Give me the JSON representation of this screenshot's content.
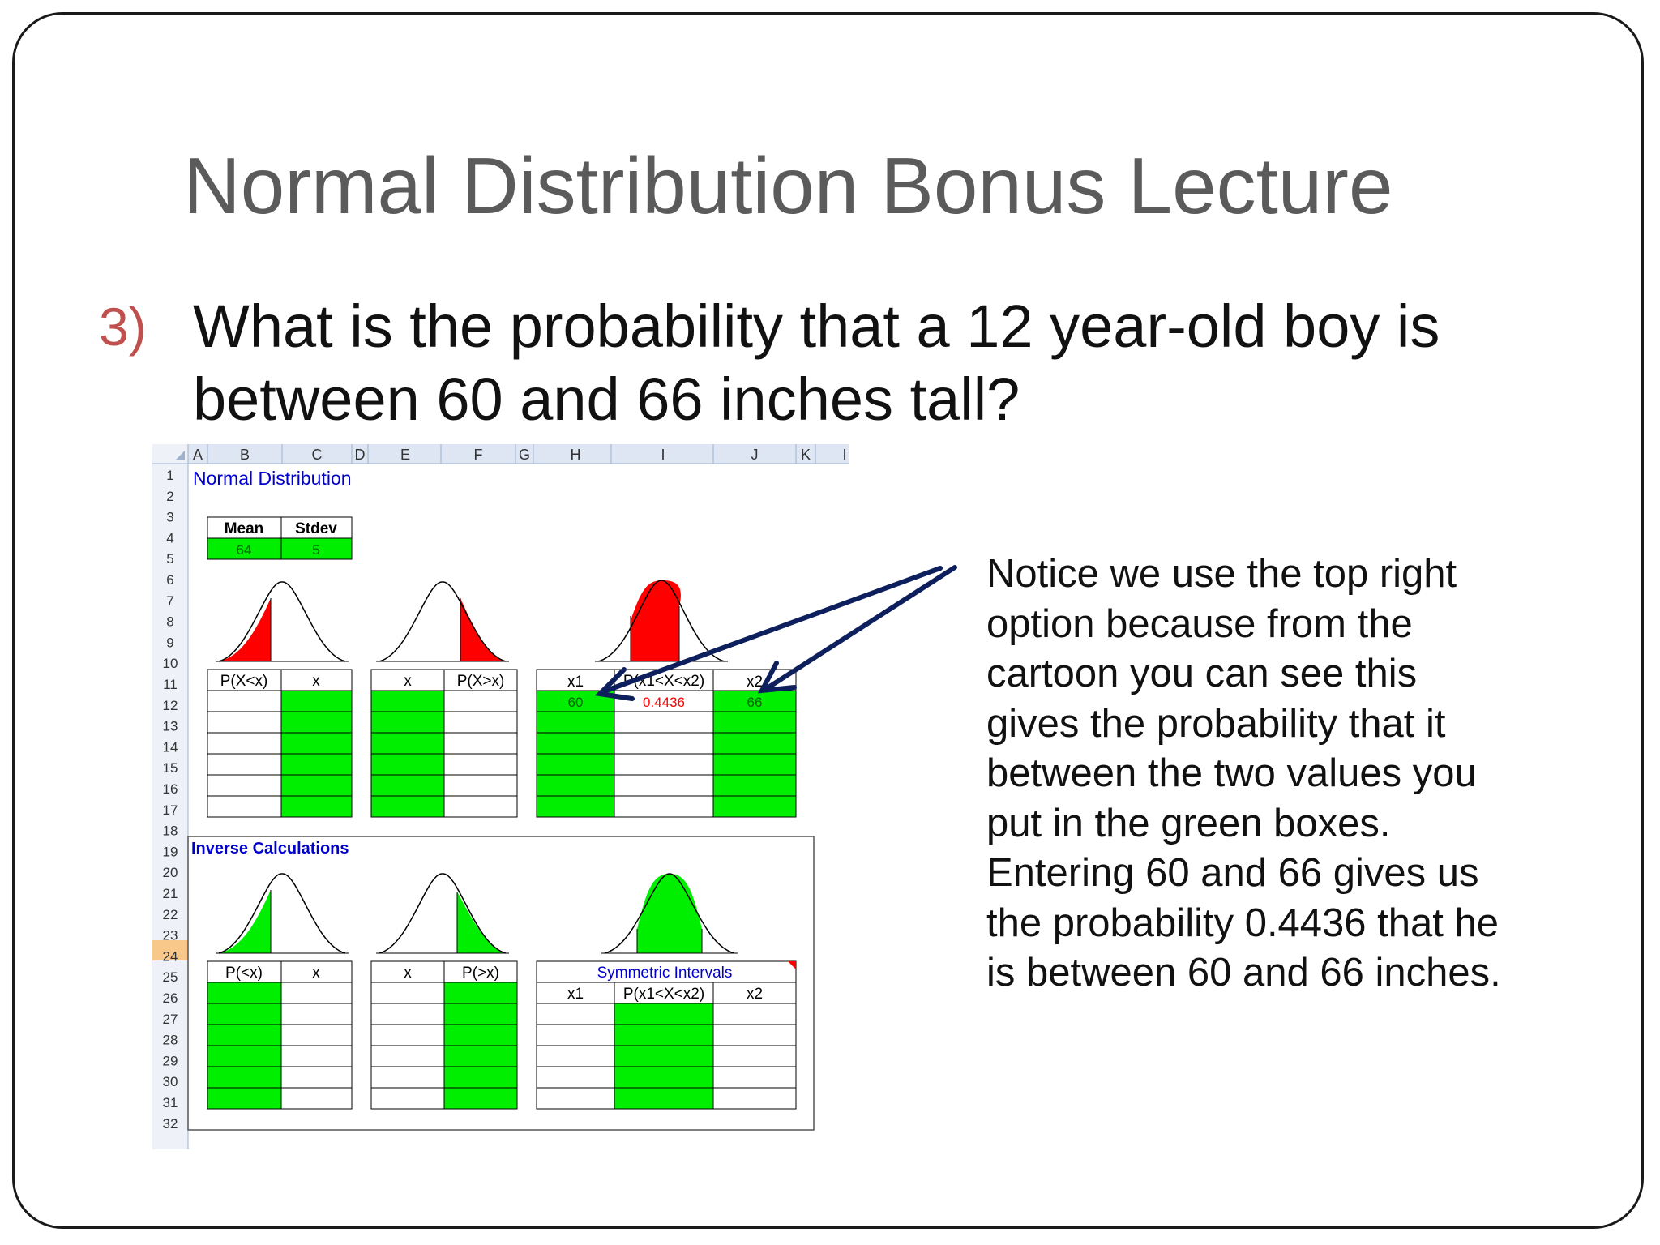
{
  "slide": {
    "title": "Normal Distribution Bonus Lecture",
    "question_number": "3)",
    "question_text": "What is the probability that a 12 year-old boy is between 60 and 66 inches tall?",
    "note_text": "Notice we use the top right option because from the cartoon you can see this gives the probability that it between the two values you put in the green boxes. Entering 60 and 66 gives us the probability 0.4436 that he is between 60 and 66 inches."
  },
  "spreadsheet": {
    "column_headers": [
      "A",
      "B",
      "C",
      "D",
      "E",
      "F",
      "G",
      "H",
      "I",
      "J",
      "K",
      "I"
    ],
    "row_numbers": [
      "1",
      "2",
      "3",
      "4",
      "5",
      "6",
      "7",
      "8",
      "9",
      "10",
      "11",
      "12",
      "13",
      "14",
      "15",
      "16",
      "17",
      "18",
      "19",
      "20",
      "21",
      "22",
      "23",
      "24",
      "25",
      "26",
      "27",
      "28",
      "29",
      "30",
      "31",
      "32"
    ],
    "section_normal": "Normal Distribution",
    "section_inverse": "Inverse Calculations",
    "mean_label": "Mean",
    "stdev_label": "Stdev",
    "mean_value": "64",
    "stdev_value": "5",
    "t1_h1": "P(X<x)",
    "t1_h2": "x",
    "t2_h1": "x",
    "t2_h2": "P(X>x)",
    "t3_h1": "x1",
    "t3_h2": "P(x1<X<x2)",
    "t3_h3": "x2",
    "t3_x1": "60",
    "t3_p": "0.4436",
    "t3_x2": "66",
    "t4_h1": "P(<x)",
    "t4_h2": "x",
    "t5_h1": "x",
    "t5_h2": "P(>x)",
    "t6_title": "Symmetric Intervals",
    "t6_h1": "x1",
    "t6_h2": "P(x1<X<x2)",
    "t6_h3": "x2",
    "colors": {
      "green": "#00ee00",
      "red": "#ff0000",
      "blue_text": "#0000cc",
      "arrow": "#0d1f5c",
      "highlight_row": "#f7c889"
    }
  }
}
